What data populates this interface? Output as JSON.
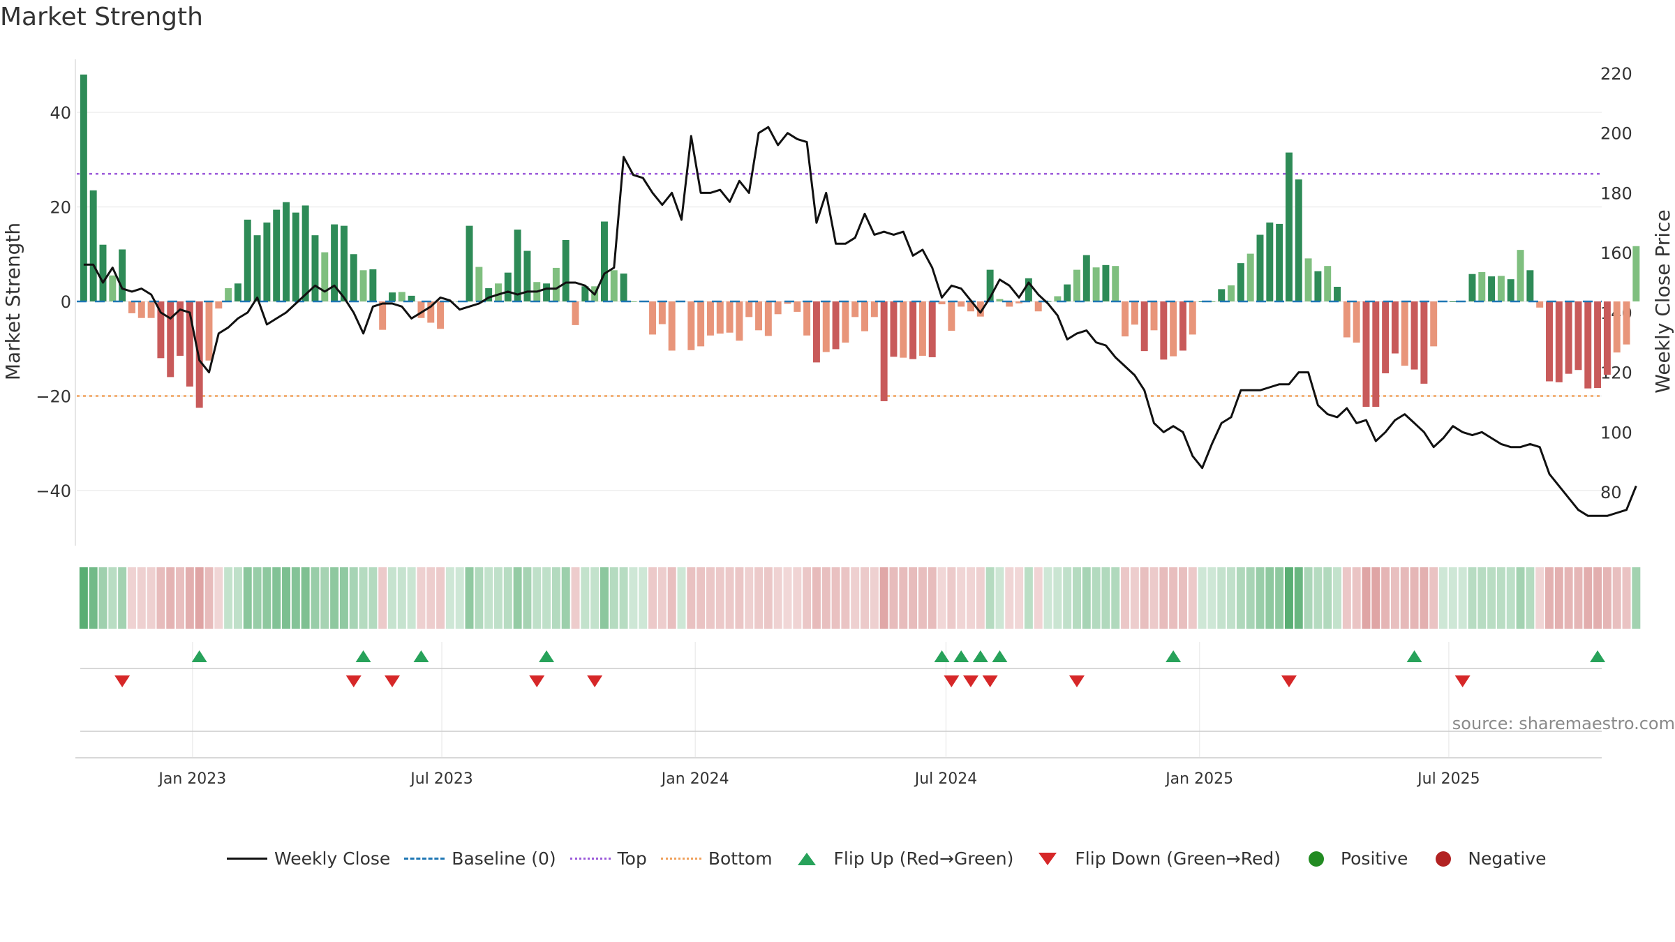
{
  "title": "Market Strength",
  "source": "source: sharemaestro.com",
  "chart_data": {
    "type": "bar",
    "title": "Market Strength",
    "y_left_label": "Market Strength",
    "y_right_label": "Weekly Close Price",
    "y_left_ticks": [
      "40",
      "20",
      "0",
      "−20",
      "−40"
    ],
    "y_left_tick_values": [
      40,
      20,
      0,
      -20,
      -40
    ],
    "y_right_ticks": [
      "220",
      "200",
      "180",
      "160",
      "140",
      "120",
      "100",
      "80"
    ],
    "y_right_tick_values": [
      220,
      200,
      180,
      160,
      140,
      120,
      100,
      80
    ],
    "y_left_range": [
      -52,
      52
    ],
    "y_right_range": [
      60,
      230
    ],
    "x_tick_labels": [
      "Jan 2023",
      "Jul 2023",
      "Jan 2024",
      "Jul 2024",
      "Jan 2025",
      "Jul 2025"
    ],
    "x_tick_dates": [
      "2023-01-01",
      "2023-07-01",
      "2024-01-01",
      "2024-07-01",
      "2025-01-01",
      "2025-07-01"
    ],
    "x_range": [
      "2022-10-09",
      "2025-10-20"
    ],
    "first_week": "2022-10-14",
    "top_line": 27,
    "bottom_line": -20,
    "baseline": 0,
    "strength": [
      48,
      23.5,
      12,
      5.5,
      11,
      -2.5,
      -3.5,
      -3.5,
      -12,
      -16,
      -11.5,
      -18,
      -22.5,
      -12.5,
      -1.5,
      2.8,
      3.8,
      17.3,
      14,
      16.7,
      19.4,
      21,
      18.8,
      20.3,
      14,
      10.4,
      16.3,
      16,
      10,
      6.6,
      6.8,
      -6,
      1.9,
      2,
      1.2,
      -3.5,
      -4.5,
      -5.8,
      0,
      0,
      16,
      7.3,
      2.8,
      3.8,
      6.1,
      15.2,
      10.7,
      4.1,
      3.8,
      7.1,
      13,
      -5,
      3.2,
      3.2,
      16.9,
      6.6,
      5.9,
      0,
      0,
      -7,
      -4.8,
      -10.4,
      0,
      -10.3,
      -9.5,
      -7.2,
      -6.8,
      -6.6,
      -8.3,
      -3.3,
      -6.1,
      -7.3,
      -2.7,
      -0.5,
      -2.2,
      -7.2,
      -12.9,
      -10.7,
      -10.1,
      -8.7,
      -3.3,
      -6.3,
      -3.3,
      -21.1,
      -11.7,
      -11.9,
      -12.2,
      -11.5,
      -11.8,
      -0.6,
      -6.2,
      -1.1,
      -2.1,
      -3.2,
      6.7,
      0.5,
      -1.1,
      -0.4,
      4.9,
      -2.1,
      0.1,
      1.1,
      3.6,
      6.7,
      9.8,
      7.2,
      7.7,
      7.5,
      -7.4,
      -4.9,
      -10.5,
      -6.1,
      -12.3,
      -11.6,
      -10.4,
      -7,
      0,
      0,
      2.6,
      3.4,
      8.1,
      10.1,
      14.1,
      16.7,
      16.4,
      31.5,
      25.8,
      9.1,
      6.4,
      7.5,
      3.1,
      -7.6,
      -8.7,
      -22.3,
      -22.3,
      -15.2,
      -11,
      -13.6,
      -14.4,
      -17.4,
      -9.5,
      0,
      0,
      0,
      5.8,
      6.2,
      5.3,
      5.4,
      4.7,
      10.9,
      6.6,
      -1.3,
      -16.9,
      -17.1,
      -15.3,
      -14.5,
      -18.4,
      -18.3,
      -15.5,
      -10.8,
      -9.1,
      11.7
    ],
    "close": [
      156,
      156,
      150,
      155,
      148,
      147,
      148,
      146,
      140,
      138,
      141,
      140,
      124,
      120,
      133,
      135,
      138,
      140,
      145,
      136,
      138,
      140,
      143,
      146,
      149,
      147,
      149,
      145,
      140,
      133,
      142,
      143,
      143,
      142,
      138,
      140,
      142,
      145,
      144,
      141,
      142,
      143,
      145,
      146,
      147,
      146,
      147,
      147,
      148,
      148,
      150,
      150,
      149,
      146,
      153,
      155,
      192,
      186,
      185,
      180,
      176,
      180,
      171,
      199,
      180,
      180,
      181,
      177,
      184,
      180,
      200,
      202,
      196,
      200,
      198,
      197,
      170,
      180,
      163,
      163,
      165,
      173,
      166,
      167,
      166,
      167,
      159,
      161,
      155,
      145,
      149,
      148,
      144,
      140,
      145,
      151,
      149,
      145,
      150,
      146,
      143,
      139,
      131,
      133,
      134,
      130,
      129,
      125,
      122,
      119,
      114,
      103,
      100,
      102,
      100,
      92,
      88,
      96,
      103,
      105,
      114,
      114,
      114,
      115,
      116,
      116,
      120,
      120,
      109,
      106,
      105,
      108,
      103,
      104,
      97,
      100,
      104,
      106,
      103,
      100,
      95,
      98,
      102,
      100,
      99,
      100,
      98,
      96,
      95,
      95,
      96,
      95,
      86,
      82,
      78,
      74,
      72,
      72,
      72,
      73,
      74,
      82
    ],
    "flip_up": [
      "2023-01-06",
      "2023-05-05",
      "2023-06-16",
      "2023-09-15",
      "2024-06-28",
      "2024-07-12",
      "2024-07-26",
      "2024-08-09",
      "2024-12-13",
      "2025-06-06",
      "2025-10-17"
    ],
    "flip_down": [
      "2022-11-11",
      "2023-04-28",
      "2023-05-26",
      "2023-09-08",
      "2023-10-20",
      "2024-07-05",
      "2024-07-19",
      "2024-08-02",
      "2024-10-04",
      "2025-03-07",
      "2025-07-11"
    ],
    "heatmap_label": "Positive / Negative strength band",
    "legend": [
      {
        "label": "Weekly Close",
        "swatch": "line",
        "color": "#111111"
      },
      {
        "label": "Baseline (0)",
        "swatch": "dash",
        "color": "#1f77b4"
      },
      {
        "label": "Top",
        "swatch": "dotp",
        "color": "#9b59d9"
      },
      {
        "label": "Bottom",
        "swatch": "doto",
        "color": "#f0a05a"
      },
      {
        "label": "Flip Up (Red→Green)",
        "swatch": "up",
        "color": "#27a25a"
      },
      {
        "label": "Flip Down (Green→Red)",
        "swatch": "down",
        "color": "#d62728"
      },
      {
        "label": "Positive",
        "swatch": "dot",
        "color": "#228b22"
      },
      {
        "label": "Negative",
        "swatch": "dot",
        "color": "#b22222"
      }
    ],
    "colors": {
      "pos_strong": "#2e8b57",
      "pos_weak": "#7fbf7f",
      "neg_strong": "#c85a5a",
      "neg_weak": "#e8957a",
      "line": "#111111"
    }
  }
}
